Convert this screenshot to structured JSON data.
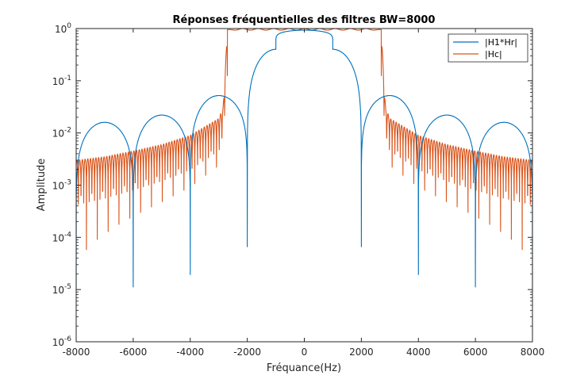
{
  "chart_data": {
    "type": "line",
    "title": "Réponses fréquentielles des filtres BW=8000",
    "xlabel": "Fréquance(Hz)",
    "ylabel": "Amplitude",
    "xlim": [
      -8000,
      8000
    ],
    "ylim": [
      1e-06,
      1
    ],
    "yscale": "log",
    "grid": false,
    "legend_position": "top-right",
    "x_ticks": [
      -8000,
      -6000,
      -4000,
      -2000,
      0,
      2000,
      4000,
      6000,
      8000
    ],
    "x_tick_labels": [
      "-8000",
      "-6000",
      "-4000",
      "-2000",
      "0",
      "2000",
      "4000",
      "6000",
      "8000"
    ],
    "y_ticks": [
      {
        "value": 1e-06,
        "base": "10",
        "exp": "-6"
      },
      {
        "value": 1e-05,
        "base": "10",
        "exp": "-5"
      },
      {
        "value": 0.0001,
        "base": "10",
        "exp": "-4"
      },
      {
        "value": 0.001,
        "base": "10",
        "exp": "-3"
      },
      {
        "value": 0.01,
        "base": "10",
        "exp": "-2"
      },
      {
        "value": 0.1,
        "base": "10",
        "exp": "-1"
      },
      {
        "value": 1,
        "base": "10",
        "exp": "0"
      }
    ],
    "series": [
      {
        "name": "|H1*Hr|",
        "color": "#0072BD",
        "x": [
          -8000,
          -7000,
          -6000,
          -5000,
          -4000,
          -3000,
          -2000,
          -1000,
          0,
          1000,
          2000,
          3000,
          4000,
          5000,
          6000,
          7000,
          8000
        ],
        "y": [
          1e-05,
          0.016,
          1.1e-05,
          0.022,
          1.9e-05,
          0.052,
          6.5e-05,
          0.4,
          0.93,
          0.4,
          6.5e-05,
          0.052,
          1.9e-05,
          0.022,
          1.1e-05,
          0.016,
          1e-05
        ]
      },
      {
        "name": "|Hc|",
        "color": "#D95319",
        "x": [
          -8000,
          -7000,
          -6000,
          -5000,
          -4000,
          -3000,
          -2850,
          -2800,
          -2700,
          -2500,
          0,
          2500,
          2700,
          2800,
          2850,
          3000,
          4000,
          5000,
          6000,
          7000,
          8000
        ],
        "y": [
          0.003,
          0.0035,
          0.0045,
          0.006,
          0.009,
          0.019,
          0.03,
          0.08,
          0.95,
          1.0,
          1.0,
          1.0,
          0.95,
          0.08,
          0.03,
          0.019,
          0.009,
          0.006,
          0.0045,
          0.0035,
          0.003
        ],
        "y_min_envelope": [
          1e-05,
          6e-05,
          0.00012,
          0.00025,
          0.00045,
          0.0008,
          0.001,
          0.001,
          0.0008,
          0.00045,
          0.00025,
          0.00012,
          6e-05,
          1e-05
        ]
      }
    ]
  }
}
